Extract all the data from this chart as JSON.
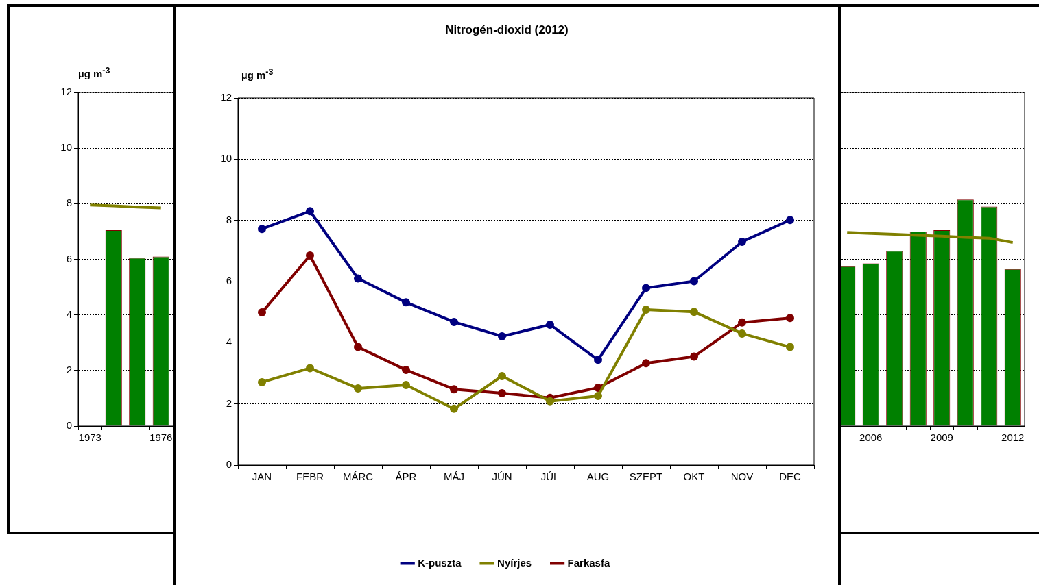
{
  "chart_data": [
    {
      "type": "bar",
      "ylabel": "µg m$^{-3}$",
      "categories": [
        "1973",
        null,
        null,
        "1976",
        null,
        null,
        null,
        null,
        null,
        null,
        null,
        null,
        null,
        null,
        null,
        null,
        null,
        null,
        null,
        null,
        null,
        null,
        null,
        null,
        null,
        null,
        null,
        null,
        null,
        null,
        null,
        null,
        null,
        "2006",
        null,
        null,
        "2009",
        null,
        null,
        "2012"
      ],
      "series": [
        {
          "color": "#008000",
          "values": [
            null,
            7.05,
            6.05,
            6.1,
            null,
            null,
            null,
            null,
            null,
            null,
            null,
            null,
            null,
            null,
            null,
            null,
            null,
            null,
            null,
            null,
            null,
            null,
            null,
            null,
            null,
            null,
            null,
            null,
            null,
            null,
            null,
            null,
            5.75,
            5.85,
            6.3,
            7.0,
            7.05,
            8.15,
            7.9,
            5.65
          ]
        },
        {
          "type": "line",
          "color": "#808000",
          "values": [
            7.95,
            7.92,
            7.88,
            7.85,
            null,
            null,
            null,
            null,
            null,
            null,
            null,
            null,
            null,
            null,
            null,
            null,
            null,
            null,
            null,
            null,
            null,
            null,
            null,
            null,
            null,
            null,
            null,
            null,
            null,
            null,
            null,
            null,
            6.97,
            6.93,
            6.9,
            6.86,
            6.83,
            6.79,
            6.76,
            6.6
          ]
        }
      ],
      "ylim": [
        0,
        12
      ],
      "yticks": [
        0,
        2,
        4,
        6,
        8,
        10,
        12
      ],
      "grid": "y",
      "legend": false
    },
    {
      "type": "line",
      "title": "Nitrogén-dioxid (2012)",
      "ylabel": "µg m$^{-3}$",
      "categories": [
        "JAN",
        "FEBR",
        "MÁRC",
        "ÁPR",
        "MÁJ",
        "JÚN",
        "JÚL",
        "AUG",
        "SZEPT",
        "OKT",
        "NOV",
        "DEC"
      ],
      "series": [
        {
          "name": "K-puszta",
          "color": "#000080",
          "values": [
            7.72,
            8.3,
            6.1,
            5.32,
            4.68,
            4.21,
            4.59,
            3.44,
            5.79,
            6.01,
            7.3,
            8.01
          ]
        },
        {
          "name": "Nyírjes",
          "color": "#808000",
          "values": [
            2.71,
            3.17,
            2.51,
            2.62,
            1.84,
            2.91,
            2.09,
            2.26,
            5.08,
            5.01,
            4.3,
            3.86
          ]
        },
        {
          "name": "Farkasfa",
          "color": "#800000",
          "values": [
            4.99,
            6.85,
            3.86,
            3.11,
            2.48,
            2.35,
            2.2,
            2.53,
            3.33,
            3.55,
            4.66,
            4.81
          ]
        }
      ],
      "ylim": [
        0,
        12
      ],
      "yticks": [
        0,
        2,
        4,
        6,
        8,
        10,
        12
      ],
      "grid": "y",
      "legend": "bottom",
      "marker": "circle",
      "line_style": "solid"
    }
  ]
}
